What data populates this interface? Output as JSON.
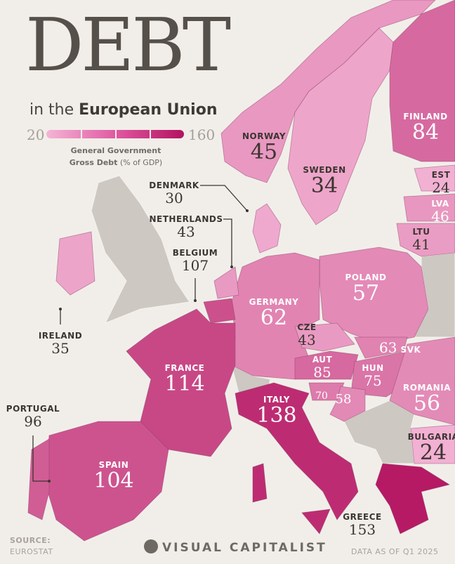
{
  "header": {
    "title": "DEBT",
    "subtitle_prefix": "in the",
    "subtitle_bold": "European Union"
  },
  "legend": {
    "min": "20",
    "max": "160",
    "caption_bold": "General Government Gross Debt",
    "caption_unit": "(% of GDP)",
    "color_low": "#f4b5d6",
    "color_high": "#b3125f"
  },
  "countries": {
    "norway": {
      "name": "NORWAY",
      "value": 45
    },
    "sweden": {
      "name": "SWEDEN",
      "value": 34
    },
    "finland": {
      "name": "FINLAND",
      "value": 84
    },
    "estonia": {
      "name": "EST",
      "value": 24
    },
    "latvia": {
      "name": "LVA",
      "value": 46
    },
    "lithuania": {
      "name": "LTU",
      "value": 41
    },
    "poland": {
      "name": "POLAND",
      "value": 57
    },
    "germany": {
      "name": "GERMANY",
      "value": 62
    },
    "denmark": {
      "name": "DENMARK",
      "value": 30
    },
    "netherlands": {
      "name": "NETHERLANDS",
      "value": 43
    },
    "belgium": {
      "name": "BELGIUM",
      "value": 107
    },
    "ireland": {
      "name": "IRELAND",
      "value": 35
    },
    "france": {
      "name": "FRANCE",
      "value": 114
    },
    "czechia": {
      "name": "CZE",
      "value": 43
    },
    "slovakia": {
      "name": "SVK",
      "value": 63
    },
    "austria": {
      "name": "AUT",
      "value": 85
    },
    "hungary": {
      "name": "HUN",
      "value": 75
    },
    "slovenia": {
      "value": 70
    },
    "croatia": {
      "value": 58
    },
    "romania": {
      "name": "ROMANIA",
      "value": 56
    },
    "bulgaria": {
      "name": "BULGARIA",
      "value": 24
    },
    "italy": {
      "name": "ITALY",
      "value": 138
    },
    "spain": {
      "name": "SPAIN",
      "value": 104
    },
    "portugal": {
      "name": "PORTUGAL",
      "value": 96
    },
    "greece": {
      "name": "GREECE",
      "value": 153
    }
  },
  "footer": {
    "source_label": "SOURCE:",
    "source": "EUROSTAT",
    "brand": "VISUAL CAPITALIST",
    "data_note": "DATA AS OF Q1 2025"
  }
}
